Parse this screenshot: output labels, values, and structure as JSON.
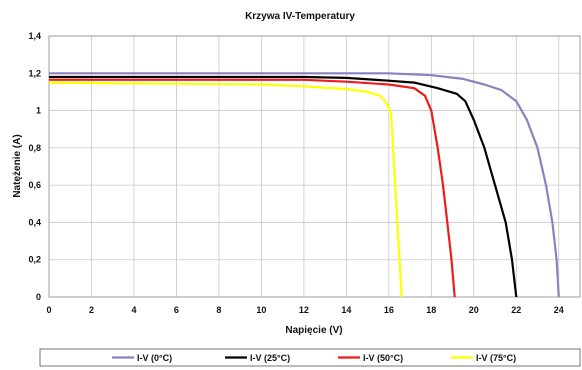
{
  "chart_data": {
    "type": "line",
    "title": "Krzywa IV-Temperatury",
    "xlabel": "Napięcie (V)",
    "ylabel": "Natężenie (A)",
    "xlim": [
      0,
      25
    ],
    "ylim": [
      0,
      1.4
    ],
    "x_ticks": [
      "0",
      "2",
      "4",
      "6",
      "8",
      "10",
      "12",
      "14",
      "16",
      "18",
      "20",
      "22",
      "24"
    ],
    "y_ticks": [
      "0",
      "0,2",
      "0,4",
      "0,6",
      "0,8",
      "1",
      "1,2",
      "1,4"
    ],
    "grid": true,
    "legend_position": "bottom",
    "series": [
      {
        "name": "I-V (0°C)",
        "color": "#8e80c0",
        "points": [
          [
            0,
            1.2
          ],
          [
            12,
            1.2
          ],
          [
            16,
            1.2
          ],
          [
            18,
            1.19
          ],
          [
            19.5,
            1.17
          ],
          [
            20.5,
            1.14
          ],
          [
            21.3,
            1.11
          ],
          [
            22,
            1.05
          ],
          [
            22.5,
            0.95
          ],
          [
            23,
            0.8
          ],
          [
            23.4,
            0.6
          ],
          [
            23.7,
            0.4
          ],
          [
            23.9,
            0.2
          ],
          [
            24,
            0
          ]
        ]
      },
      {
        "name": "I-V (25°C)",
        "color": "#000000",
        "points": [
          [
            0,
            1.18
          ],
          [
            12,
            1.18
          ],
          [
            14,
            1.175
          ],
          [
            16,
            1.16
          ],
          [
            17.2,
            1.15
          ],
          [
            18.3,
            1.12
          ],
          [
            19.2,
            1.09
          ],
          [
            19.6,
            1.05
          ],
          [
            20,
            0.95
          ],
          [
            20.5,
            0.8
          ],
          [
            21,
            0.6
          ],
          [
            21.5,
            0.4
          ],
          [
            21.8,
            0.2
          ],
          [
            22,
            0
          ]
        ]
      },
      {
        "name": "I-V (50°C)",
        "color": "#ee1c1c",
        "points": [
          [
            0,
            1.165
          ],
          [
            12,
            1.165
          ],
          [
            14,
            1.155
          ],
          [
            16,
            1.14
          ],
          [
            17.2,
            1.12
          ],
          [
            17.7,
            1.08
          ],
          [
            18,
            1.0
          ],
          [
            18.3,
            0.8
          ],
          [
            18.55,
            0.6
          ],
          [
            18.75,
            0.4
          ],
          [
            18.95,
            0.2
          ],
          [
            19.1,
            0
          ]
        ]
      },
      {
        "name": "I-V (75°C)",
        "color": "#ffff00",
        "points": [
          [
            0,
            1.15
          ],
          [
            10,
            1.14
          ],
          [
            12,
            1.13
          ],
          [
            14,
            1.115
          ],
          [
            15,
            1.1
          ],
          [
            15.6,
            1.08
          ],
          [
            15.9,
            1.04
          ],
          [
            16.1,
            0.98
          ],
          [
            16.2,
            0.8
          ],
          [
            16.3,
            0.6
          ],
          [
            16.4,
            0.4
          ],
          [
            16.5,
            0.2
          ],
          [
            16.6,
            0
          ]
        ]
      }
    ]
  }
}
